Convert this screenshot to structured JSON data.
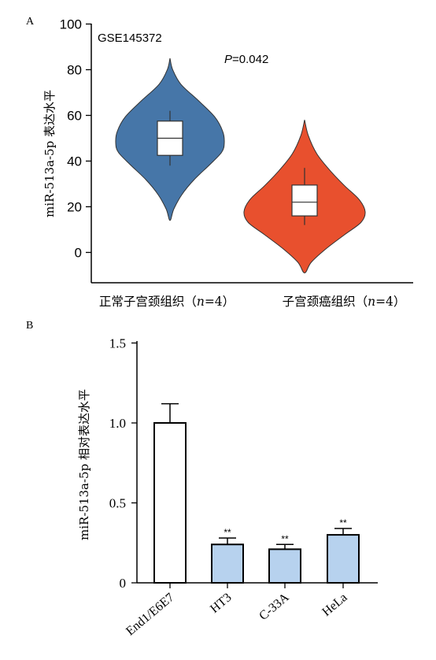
{
  "chart_data": [
    {
      "panel_label": "A",
      "type": "violin",
      "dataset": "GSE145372",
      "annotation": "=0.042",
      "annotation_p": "P",
      "ylabel": "miR-513a-5p 表达水平",
      "ylim": [
        -10,
        100
      ],
      "yticks": [
        0,
        20,
        40,
        60,
        80,
        100
      ],
      "groups": [
        {
          "label_main": "正常子宫颈组织（",
          "label_n": "n",
          "label_tail": "=4）",
          "color": "#4676a8",
          "violin_range": [
            14,
            85
          ],
          "box": {
            "q1": 42.5,
            "median": 50,
            "q3": 57.5,
            "whisker_low": 38,
            "whisker_high": 62
          }
        },
        {
          "label_main": "子宫颈癌组织（",
          "label_n": "n",
          "label_tail": "=4）",
          "color": "#e8502e",
          "violin_range": [
            -9,
            58
          ],
          "box": {
            "q1": 16,
            "median": 22,
            "q3": 29.5,
            "whisker_low": 12,
            "whisker_high": 37
          }
        }
      ]
    },
    {
      "panel_label": "B",
      "type": "bar",
      "ylabel": "miR-513a-5p 相对表达水平",
      "ylim": [
        0,
        1.5
      ],
      "yticks": [
        "0",
        "0.5",
        "1.0",
        "1.5"
      ],
      "categories": [
        "End1/E6E7",
        "HT3",
        "C-33A",
        "HeLa"
      ],
      "values": [
        1.0,
        0.24,
        0.21,
        0.3
      ],
      "errors": [
        0.12,
        0.04,
        0.03,
        0.04
      ],
      "significance": [
        "",
        "**",
        "**",
        "**"
      ],
      "colors": [
        "#ffffff",
        "#b7d2ee",
        "#b7d2ee",
        "#b7d2ee"
      ]
    }
  ]
}
